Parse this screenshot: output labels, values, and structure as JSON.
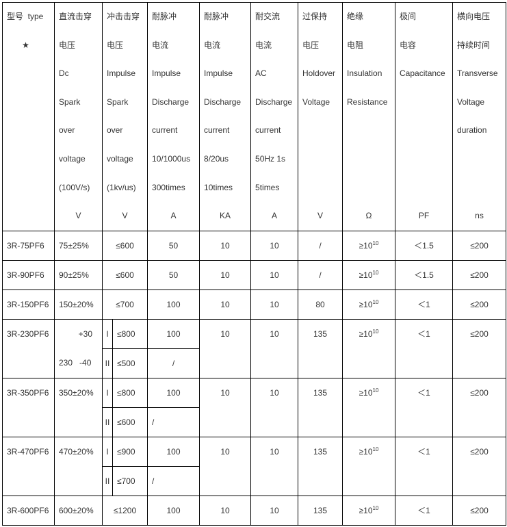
{
  "header": {
    "model": {
      "lines": [
        "",
        "",
        "型号  type",
        "",
        "★"
      ]
    },
    "columns": [
      {
        "lines": [
          "直流击穿",
          "电压",
          "Dc",
          "Spark",
          "over",
          "voltage",
          "(100V/s)"
        ],
        "unit": "V"
      },
      {
        "lines": [
          "冲击击穿",
          "电压",
          "Impulse",
          "Spark",
          "over",
          "voltage",
          "(1kv/us)"
        ],
        "unit": "V"
      },
      {
        "lines": [
          "耐脉冲",
          "电流",
          "Impulse",
          "Discharge",
          "current",
          "10/1000us",
          "300times"
        ],
        "unit": "A"
      },
      {
        "lines": [
          "耐脉冲",
          "电流",
          "Impulse",
          "Discharge",
          "current",
          "8/20us",
          "10times"
        ],
        "unit": "KA"
      },
      {
        "lines": [
          "耐交流",
          "电流",
          "AC",
          "Discharge",
          "current",
          "50Hz 1s",
          "5times"
        ],
        "unit": "A"
      },
      {
        "lines": [
          "过保持",
          "电压",
          "Holdover",
          "Voltage"
        ],
        "unit": "V"
      },
      {
        "lines": [
          "绝缘",
          "电阻",
          "Insulation",
          "Resistance"
        ],
        "unit": "Ω"
      },
      {
        "lines": [
          "极间",
          "电容",
          "Capacitance"
        ],
        "unit": "PF"
      },
      {
        "lines": [
          "横向电压",
          "持续时间",
          "Transverse",
          "Voltage",
          "duration"
        ],
        "unit": "ns"
      }
    ]
  },
  "rows": [
    {
      "model": "3R-75PF6",
      "dc": [
        "75±25%"
      ],
      "impulse": "≤600",
      "disc_a": "50",
      "disc_ka": "10",
      "ac": "10",
      "holdover": "/",
      "insulation": {
        "base": "≥10",
        "exp": "10"
      },
      "capacitance": "＜1.5",
      "duration": "≤200"
    },
    {
      "model": "3R-90PF6",
      "dc": [
        "90±25%"
      ],
      "impulse": "≤600",
      "disc_a": "50",
      "disc_ka": "10",
      "ac": "10",
      "holdover": "/",
      "insulation": {
        "base": "≥10",
        "exp": "10"
      },
      "capacitance": "＜1.5",
      "duration": "≤200"
    },
    {
      "model": "3R-150PF6",
      "dc": [
        "150±20%"
      ],
      "impulse": "≤700",
      "disc_a": "100",
      "disc_ka": "10",
      "ac": "10",
      "holdover": "80",
      "insulation": {
        "base": "≥10",
        "exp": "10"
      },
      "capacitance": "＜1",
      "duration": "≤200"
    },
    {
      "model": "3R-230PF6",
      "dc": [
        "+30",
        "230   -40"
      ],
      "sub": [
        {
          "grade": "I",
          "value": "≤800",
          "disc_a": "100"
        },
        {
          "grade": "II",
          "value": "≤500",
          "disc_a": "/"
        }
      ],
      "disc_ka": "10",
      "ac": "10",
      "holdover": "135",
      "insulation": {
        "base": "≥10",
        "exp": "10"
      },
      "capacitance": "＜1",
      "duration": "≤200"
    },
    {
      "model": "3R-350PF6",
      "dc": [
        "350±20%"
      ],
      "sub": [
        {
          "grade": "I",
          "value": "≤800",
          "disc_a": "100"
        },
        {
          "grade": "II",
          "value": "≤600",
          "disc_a": "/"
        }
      ],
      "disc_ka": "10",
      "ac": "10",
      "holdover": "135",
      "insulation": {
        "base": "≥10",
        "exp": "10"
      },
      "capacitance": "＜1",
      "duration": "≤200"
    },
    {
      "model": "3R-470PF6",
      "dc": [
        "470±20%"
      ],
      "sub": [
        {
          "grade": "I",
          "value": "≤900",
          "disc_a": "100"
        },
        {
          "grade": "II",
          "value": "≤700",
          "disc_a": "/"
        }
      ],
      "disc_ka": "10",
      "ac": "10",
      "holdover": "135",
      "insulation": {
        "base": "≥10",
        "exp": "10"
      },
      "capacitance": "＜1",
      "duration": "≤200"
    },
    {
      "model": "3R-600PF6",
      "dc": [
        "600±20%"
      ],
      "impulse": "≤1200",
      "disc_a": "100",
      "disc_ka": "10",
      "ac": "10",
      "holdover": "135",
      "insulation": {
        "base": "≥10",
        "exp": "10"
      },
      "capacitance": "＜1",
      "duration": "≤200"
    }
  ]
}
